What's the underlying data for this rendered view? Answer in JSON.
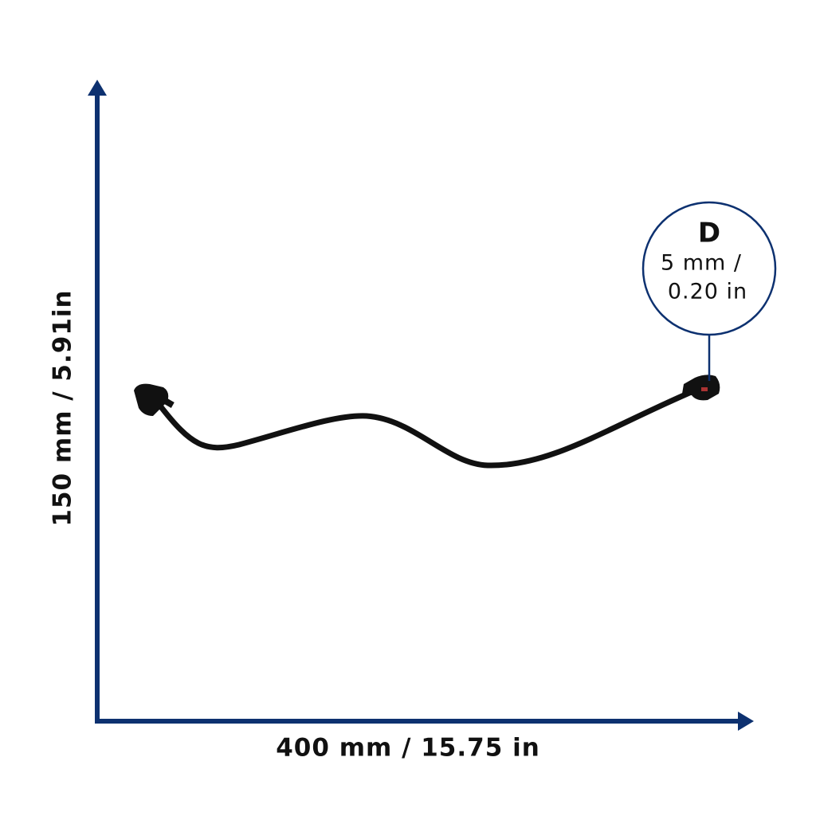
{
  "dimensions": {
    "height_label": "150 mm / 5.91in",
    "width_label": "400 mm / 15.75 in"
  },
  "callout": {
    "letter": "D",
    "lines": [
      "5 mm /",
      "0.20 in"
    ]
  }
}
